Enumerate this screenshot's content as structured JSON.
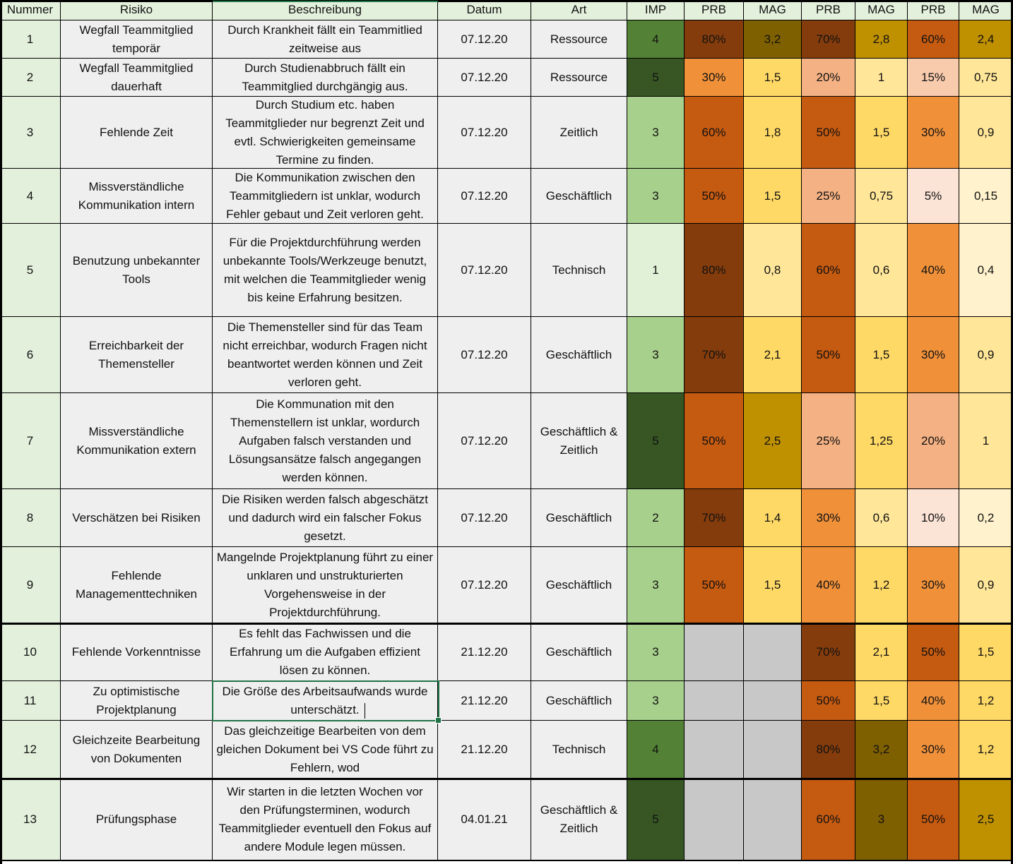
{
  "headers": [
    "Nummer",
    "Risiko",
    "Beschreibung",
    "Datum",
    "Art",
    "IMP",
    "PRB",
    "MAG",
    "PRB",
    "MAG",
    "PRB",
    "MAG"
  ],
  "rows": [
    {
      "nr": "1",
      "risiko": "Wegfall Teammitglied temporär",
      "beschreibung": "Durch Krankheit fällt ein Teammitlied zeitweise aus",
      "datum": "07.12.20",
      "art": "Ressource",
      "imp": "4",
      "prb1": "80%",
      "mag1": "3,2",
      "prb2": "70%",
      "mag2": "2,8",
      "prb3": "60%",
      "mag3": "2,4"
    },
    {
      "nr": "2",
      "risiko": "Wegfall Teammitglied dauerhaft",
      "beschreibung": "Durch Studienabbruch fällt ein Teammitglied durchgängig aus.",
      "datum": "07.12.20",
      "art": "Ressource",
      "imp": "5",
      "prb1": "30%",
      "mag1": "1,5",
      "prb2": "20%",
      "mag2": "1",
      "prb3": "15%",
      "mag3": "0,75"
    },
    {
      "nr": "3",
      "risiko": "Fehlende Zeit",
      "beschreibung": "Durch Studium etc. haben Teammitglieder nur begrenzt Zeit und evtl. Schwierigkeiten gemeinsame Termine zu finden.",
      "datum": "07.12.20",
      "art": "Zeitlich",
      "imp": "3",
      "prb1": "60%",
      "mag1": "1,8",
      "prb2": "50%",
      "mag2": "1,5",
      "prb3": "30%",
      "mag3": "0,9"
    },
    {
      "nr": "4",
      "risiko": "Missverständliche Kommunikation intern",
      "beschreibung": "Die Kommunikation zwischen den Teammitgliedern ist unklar, wodurch Fehler gebaut und Zeit verloren geht.",
      "datum": "07.12.20",
      "art": "Geschäftlich",
      "imp": "3",
      "prb1": "50%",
      "mag1": "1,5",
      "prb2": "25%",
      "mag2": "0,75",
      "prb3": "5%",
      "mag3": "0,15"
    },
    {
      "nr": "5",
      "risiko": "Benutzung unbekannter Tools",
      "beschreibung": "Für die Projektdurchführung werden unbekannte Tools/Werkzeuge benutzt, mit welchen die Teammitglieder wenig bis keine Erfahrung besitzen.",
      "datum": "07.12.20",
      "art": "Technisch",
      "imp": "1",
      "prb1": "80%",
      "mag1": "0,8",
      "prb2": "60%",
      "mag2": "0,6",
      "prb3": "40%",
      "mag3": "0,4"
    },
    {
      "nr": "6",
      "risiko": "Erreichbarkeit der Themensteller",
      "beschreibung": "Die Themensteller sind für das Team nicht erreichbar, wodurch Fragen nicht beantwortet werden können und Zeit verloren geht.",
      "datum": "07.12.20",
      "art": "Geschäftlich",
      "imp": "3",
      "prb1": "70%",
      "mag1": "2,1",
      "prb2": "50%",
      "mag2": "1,5",
      "prb3": "30%",
      "mag3": "0,9"
    },
    {
      "nr": "7",
      "risiko": "Missverständliche Kommunikation extern",
      "beschreibung": "Die Kommunation mit den Themenstellern ist unklar, wordurch Aufgaben falsch verstanden und Lösungsansätze falsch angegangen werden können.",
      "datum": "07.12.20",
      "art": "Geschäftlich & Zeitlich",
      "imp": "5",
      "prb1": "50%",
      "mag1": "2,5",
      "prb2": "25%",
      "mag2": "1,25",
      "prb3": "20%",
      "mag3": "1"
    },
    {
      "nr": "8",
      "risiko": "Verschätzen bei Risiken",
      "beschreibung": "Die Risiken werden falsch abgeschätzt und dadurch wird ein falscher Fokus gesetzt.",
      "datum": "07.12.20",
      "art": "Geschäftlich",
      "imp": "2",
      "prb1": "70%",
      "mag1": "1,4",
      "prb2": "30%",
      "mag2": "0,6",
      "prb3": "10%",
      "mag3": "0,2"
    },
    {
      "nr": "9",
      "risiko": "Fehlende Managementtechniken",
      "beschreibung": "Mangelnde Projektplanung führt zu einer unklaren und unstrukturierten Vorgehensweise in der Projektdurchführung.",
      "datum": "07.12.20",
      "art": "Geschäftlich",
      "imp": "3",
      "prb1": "50%",
      "mag1": "1,5",
      "prb2": "40%",
      "mag2": "1,2",
      "prb3": "30%",
      "mag3": "0,9"
    },
    {
      "nr": "10",
      "risiko": "Fehlende Vorkenntnisse",
      "beschreibung": "Es fehlt das Fachwissen und die Erfahrung um die Aufgaben effizient lösen zu können.",
      "datum": "21.12.20",
      "art": "Geschäftlich",
      "imp": "3",
      "prb1": "",
      "mag1": "",
      "prb2": "70%",
      "mag2": "2,1",
      "prb3": "50%",
      "mag3": "1,5"
    },
    {
      "nr": "11",
      "risiko": "Zu optimistische Projektplanung",
      "beschreibung": "Die Größe des Arbeitsaufwands wurde unterschätzt.",
      "datum": "21.12.20",
      "art": "Geschäftlich",
      "imp": "3",
      "prb1": "",
      "mag1": "",
      "prb2": "50%",
      "mag2": "1,5",
      "prb3": "40%",
      "mag3": "1,2"
    },
    {
      "nr": "12",
      "risiko": "Gleichzeite Bearbeitung von Dokumenten",
      "beschreibung": "Das gleichzeitige Bearbeiten von dem gleichen Dokument bei VS Code führt zu Fehlern, wod",
      "datum": "21.12.20",
      "art": "Technisch",
      "imp": "4",
      "prb1": "",
      "mag1": "",
      "prb2": "80%",
      "mag2": "3,2",
      "prb3": "30%",
      "mag3": "1,2"
    },
    {
      "nr": "13",
      "risiko": "Prüfungsphase",
      "beschreibung": "Wir starten in die letzten Wochen vor den Prüfungsterminen, wodurch Teammitglieder eventuell den Fokus auf andere Module legen müssen.",
      "datum": "04.01.21",
      "art": "Geschäftlich & Zeitlich",
      "imp": "5",
      "prb1": "",
      "mag1": "",
      "prb2": "60%",
      "mag2": "3",
      "prb3": "50%",
      "mag3": "2,5"
    }
  ],
  "colors": {
    "header_bg": "#e3f0dc",
    "number_bg": "#e3f0dc",
    "text_bg": "#efefef",
    "empty_bg": "#c8c8c8",
    "selection": "#217346",
    "imp": {
      "1": "#e1f1d7",
      "2": "#a8d08d",
      "3": "#a8d08d",
      "4": "#538135",
      "5": "#375623"
    },
    "prb": {
      "80%": "#843c0c",
      "70%": "#843c0c",
      "60%": "#c55a11",
      "50%": "#c55a11",
      "40%": "#f0913a",
      "30%": "#f0913a",
      "25%": "#f4b183",
      "20%": "#f4b183",
      "15%": "#f8cbad",
      "10%": "#fbe3d6",
      "5%": "#fbe3d6"
    },
    "mag": {
      "3,2": "#7f6000",
      "3": "#7f6000",
      "2,8": "#bf9000",
      "2,5": "#bf9000",
      "2,4": "#bf9000",
      "2,1": "#ffd966",
      "1,8": "#ffd966",
      "1,5": "#ffd966",
      "1,4": "#ffd966",
      "1,25": "#ffd966",
      "1,2": "#ffd966",
      "1": "#ffe699",
      "0,9": "#ffe699",
      "0,8": "#ffe699",
      "0,75": "#ffe699",
      "0,6": "#ffe699",
      "0,4": "#fff2cc",
      "0,2": "#fff2cc",
      "0,15": "#fff2cc"
    }
  },
  "selected": {
    "row": 10,
    "col": "beschreibung"
  }
}
